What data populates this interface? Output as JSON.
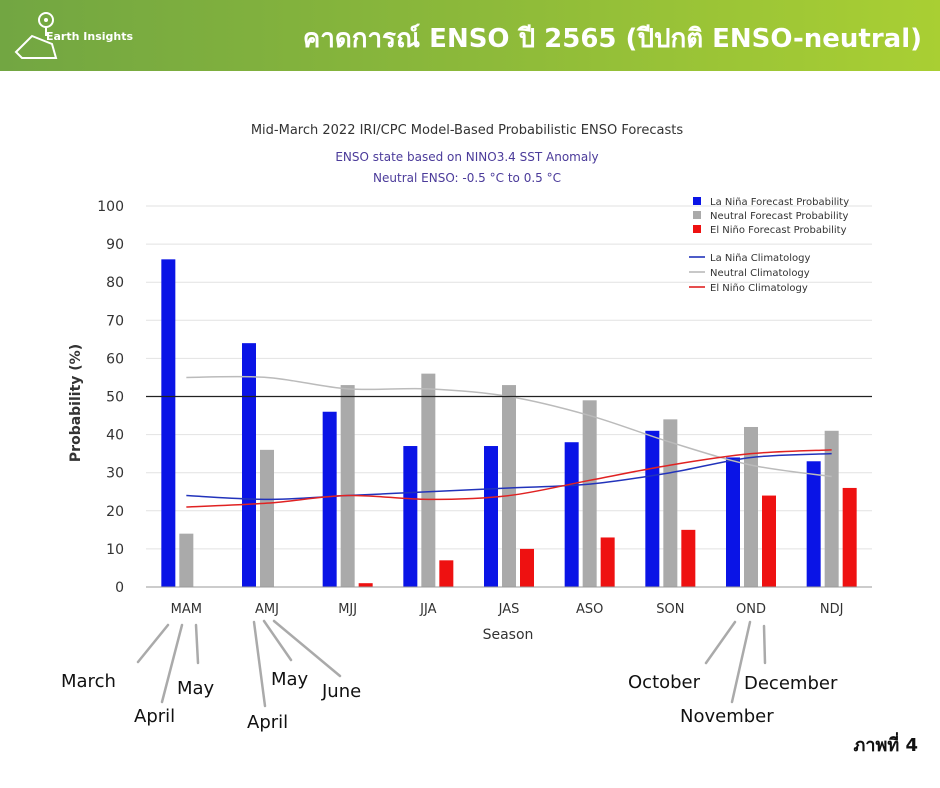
{
  "header": {
    "logo_text": "Earth Insights",
    "title": "คาดการณ์ ENSO ปี 2565 (ปีปกติ ENSO-neutral)",
    "caption": "ภาพที่ 4"
  },
  "colors": {
    "la_nina": "#0a14e6",
    "neutral": "#aaaaaa",
    "el_nino": "#ee1111",
    "la_nina_clim": "#2233bb",
    "neutral_clim": "#bbbbbb",
    "el_nino_clim": "#e02222",
    "subtitle": "#4b3b9a"
  },
  "chart_data": {
    "type": "bar",
    "title": "Mid-March 2022 IRI/CPC Model-Based Probabilistic ENSO Forecasts",
    "subtitle_lines": [
      "ENSO state based on NINO3.4 SST Anomaly",
      "Neutral ENSO: -0.5 °C to 0.5 °C"
    ],
    "xlabel": "Season",
    "ylabel": "Probability (%)",
    "ylim": [
      0,
      100
    ],
    "yticks": [
      0,
      10,
      20,
      30,
      40,
      50,
      60,
      70,
      80,
      90,
      100
    ],
    "reference_line": 50,
    "grid": true,
    "legend_position": "top-right",
    "categories": [
      "MAM",
      "AMJ",
      "MJJ",
      "JJA",
      "JAS",
      "ASO",
      "SON",
      "OND",
      "NDJ"
    ],
    "series": [
      {
        "name": "La Niña Forecast Probability",
        "values": [
          86,
          64,
          46,
          37,
          37,
          38,
          41,
          34,
          33
        ]
      },
      {
        "name": "Neutral Forecast Probability",
        "values": [
          14,
          36,
          53,
          56,
          53,
          49,
          44,
          42,
          41
        ]
      },
      {
        "name": "El Niño Forecast Probability",
        "values": [
          0,
          0,
          1,
          7,
          10,
          13,
          15,
          24,
          26
        ]
      }
    ],
    "lines": [
      {
        "name": "La Niña Climatology",
        "values": [
          24,
          23,
          24,
          25,
          26,
          27,
          30,
          34,
          35
        ]
      },
      {
        "name": "Neutral Climatology",
        "values": [
          55,
          55,
          52,
          52,
          50,
          45,
          38,
          32,
          29
        ]
      },
      {
        "name": "El Niño Climatology",
        "values": [
          21,
          22,
          24,
          23,
          24,
          28,
          32,
          35,
          36
        ]
      }
    ]
  },
  "annotations": {
    "mam": {
      "first": "March",
      "second": "April",
      "third": "May"
    },
    "amj": {
      "first": "April",
      "second": "May",
      "third": "June"
    },
    "ond": {
      "first": "October",
      "second": "November",
      "third": "December"
    }
  }
}
